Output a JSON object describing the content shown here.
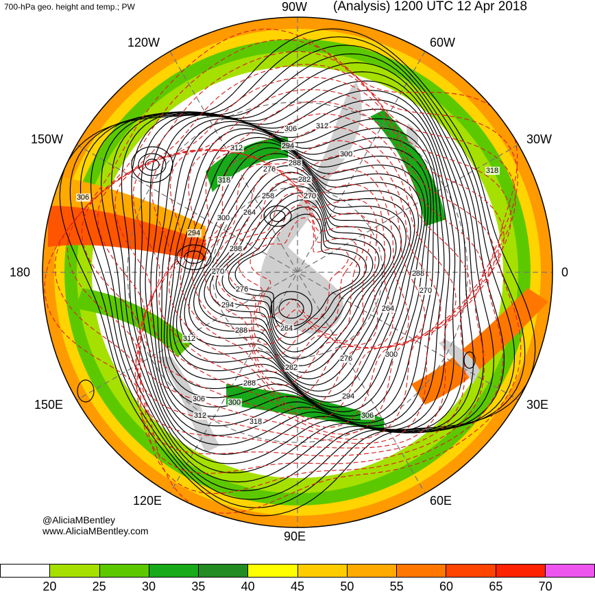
{
  "header": {
    "left": "700-hPa geo. height and temp.; PW",
    "right": "(Analysis) 1200 UTC 12 Apr 2018"
  },
  "longitudes": {
    "w90": "90W",
    "w120": "120W",
    "w60": "60W",
    "w150": "150W",
    "w30": "30W",
    "e180": "180",
    "zero": "0",
    "e150": "150E",
    "e30": "30E",
    "e120": "120E",
    "e60": "60E",
    "e90": "90E"
  },
  "contour_labels": [
    "306",
    "312",
    "294",
    "300",
    "288",
    "276",
    "282",
    "258",
    "270",
    "312",
    "318",
    "318",
    "306",
    "264",
    "300",
    "294",
    "288",
    "288",
    "270",
    "276",
    "264",
    "264",
    "300",
    "282",
    "294",
    "312",
    "306",
    "300",
    "288",
    "306",
    "312",
    "318",
    "276",
    "294",
    "288",
    "270"
  ],
  "credits": {
    "handle": "@AliciaMBentley",
    "site": "www.AliciaMBentley.com"
  },
  "colorbar": {
    "colors": [
      "#ffffff",
      "#a6e000",
      "#5cc900",
      "#18aa18",
      "#228b22",
      "#ffff00",
      "#ffcc00",
      "#ffaa00",
      "#ff7700",
      "#ff4400",
      "#ff2200",
      "#ee55ee",
      "#f5a0f0"
    ],
    "ticks": [
      "20",
      "25",
      "30",
      "35",
      "40",
      "45",
      "50",
      "55",
      "60",
      "65",
      "70"
    ]
  },
  "map_colors": {
    "green": "#5cc900",
    "dark_green": "#18aa18",
    "light_green": "#a6e000",
    "yellow": "#ffff00",
    "orange": "#ffaa00",
    "red_orange": "#ff5500",
    "land": "#cfcfcf",
    "height_contour": "#000000",
    "temp_contour": "#dd2222"
  }
}
